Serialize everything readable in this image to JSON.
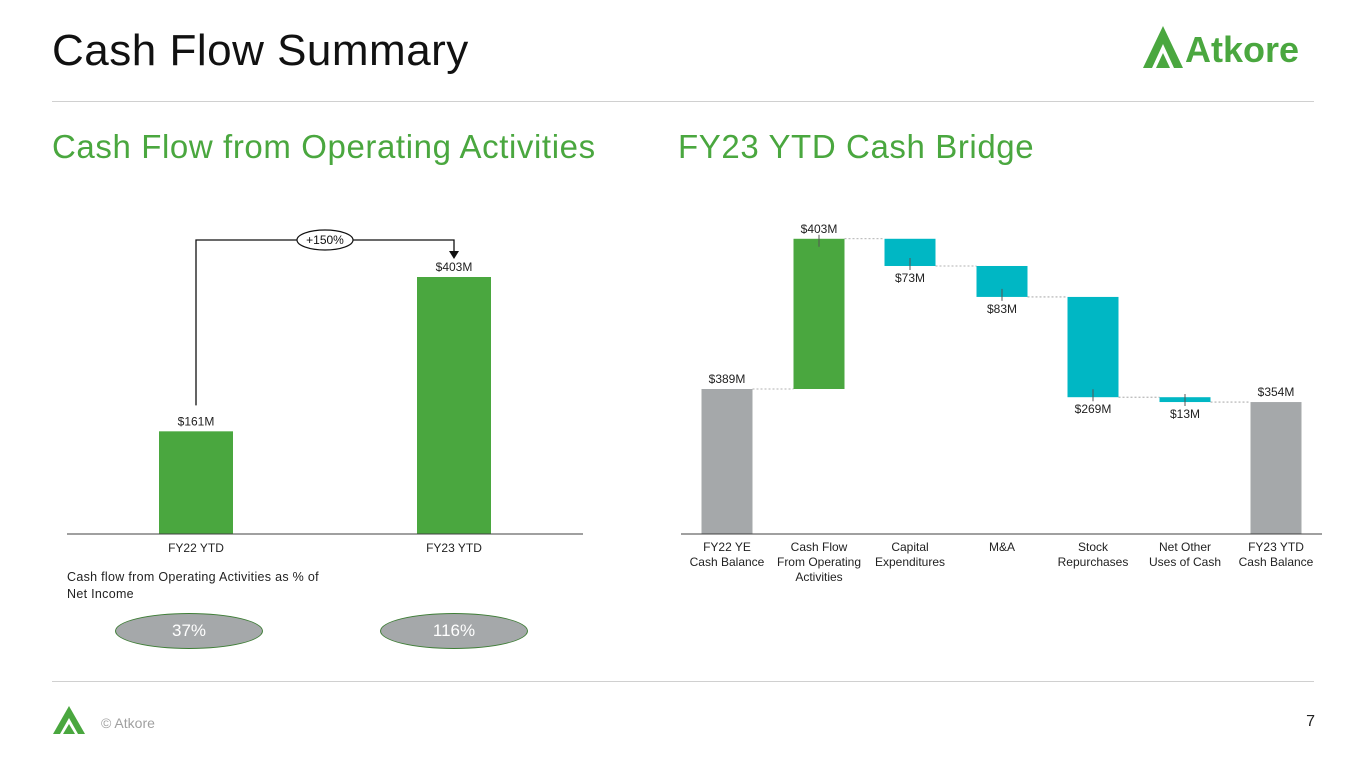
{
  "header": {
    "title": "Cash Flow Summary",
    "brand": "Atkore"
  },
  "left_section": {
    "title": "Cash Flow from Operating Activities"
  },
  "right_section": {
    "title": "FY23 YTD Cash Bridge"
  },
  "ratio": {
    "caption": "Cash flow from Operating Activities as % of Net Income",
    "values": [
      "37%",
      "116%"
    ]
  },
  "footer": {
    "copyright": "© Atkore",
    "page": "7"
  },
  "colors": {
    "green": "#4aa73f",
    "teal": "#00b7c4",
    "gray": "#a5a8aa",
    "axis": "#404040"
  },
  "chart_data": [
    {
      "type": "bar",
      "categories": [
        "FY22 YTD",
        "FY23 YTD"
      ],
      "values": [
        161,
        403
      ],
      "labels": [
        "$161M",
        "$403M"
      ],
      "annotation": "+150%",
      "ylim": [
        0,
        450
      ]
    },
    {
      "type": "waterfall",
      "categories": [
        [
          "FY22 YE",
          "Cash Balance"
        ],
        [
          "Cash Flow",
          "From Operating",
          "Activities"
        ],
        [
          "Capital",
          "Expenditures"
        ],
        [
          "M&A"
        ],
        [
          "Stock",
          "Repurchases"
        ],
        [
          "Net Other",
          "Uses of Cash"
        ],
        [
          "FY23 YTD",
          "Cash Balance"
        ]
      ],
      "steps": [
        {
          "kind": "total",
          "value": 389,
          "label": "$389M"
        },
        {
          "kind": "increase",
          "value": 403,
          "label": "$403M"
        },
        {
          "kind": "decrease",
          "value": 73,
          "label": "$73M"
        },
        {
          "kind": "decrease",
          "value": 83,
          "label": "$83M"
        },
        {
          "kind": "decrease",
          "value": 269,
          "label": "$269M"
        },
        {
          "kind": "decrease",
          "value": 13,
          "label": "$13M"
        },
        {
          "kind": "total",
          "value": 354,
          "label": "$354M"
        }
      ],
      "ylim": [
        0,
        800
      ]
    }
  ]
}
